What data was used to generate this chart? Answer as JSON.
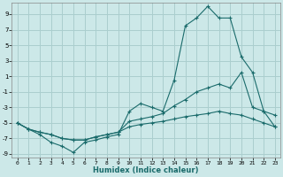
{
  "xlabel": "Humidex (Indice chaleur)",
  "background_color": "#cce8e8",
  "grid_color": "#aacece",
  "line_color": "#1a6b6b",
  "xmin": -0.5,
  "xmax": 23.5,
  "ymin": -9.5,
  "ymax": 10.5,
  "yticks": [
    -9,
    -7,
    -5,
    -3,
    -1,
    1,
    3,
    5,
    7,
    9
  ],
  "xticks": [
    0,
    1,
    2,
    3,
    4,
    5,
    6,
    7,
    8,
    9,
    10,
    11,
    12,
    13,
    14,
    15,
    16,
    17,
    18,
    19,
    20,
    21,
    22,
    23
  ],
  "line1_x": [
    0,
    1,
    2,
    3,
    4,
    5,
    6,
    7,
    8,
    9,
    10,
    11,
    12,
    13,
    14,
    15,
    16,
    17,
    18,
    19,
    20,
    21,
    22,
    23
  ],
  "line1_y": [
    -5.0,
    -5.8,
    -6.5,
    -7.5,
    -8.0,
    -8.8,
    -7.5,
    -7.2,
    -6.8,
    -6.5,
    -3.5,
    -2.5,
    -3.0,
    -3.5,
    0.5,
    7.5,
    8.5,
    10.0,
    8.5,
    8.5,
    3.5,
    1.5,
    -3.5,
    -4.0
  ],
  "line2_x": [
    0,
    1,
    2,
    3,
    4,
    5,
    6,
    7,
    8,
    9,
    10,
    11,
    12,
    13,
    14,
    15,
    16,
    17,
    18,
    19,
    20,
    21,
    22,
    23
  ],
  "line2_y": [
    -5.0,
    -5.8,
    -6.2,
    -6.5,
    -7.0,
    -7.2,
    -7.2,
    -6.8,
    -6.5,
    -6.2,
    -4.8,
    -4.5,
    -4.2,
    -3.8,
    -2.8,
    -2.0,
    -1.0,
    -0.5,
    0.0,
    -0.5,
    1.5,
    -3.0,
    -3.5,
    -5.5
  ],
  "line3_x": [
    0,
    1,
    2,
    3,
    4,
    5,
    6,
    7,
    8,
    9,
    10,
    11,
    12,
    13,
    14,
    15,
    16,
    17,
    18,
    19,
    20,
    21,
    22,
    23
  ],
  "line3_y": [
    -5.0,
    -5.8,
    -6.2,
    -6.5,
    -7.0,
    -7.2,
    -7.2,
    -6.8,
    -6.5,
    -6.2,
    -5.5,
    -5.2,
    -5.0,
    -4.8,
    -4.5,
    -4.2,
    -4.0,
    -3.8,
    -3.5,
    -3.8,
    -4.0,
    -4.5,
    -5.0,
    -5.5
  ]
}
